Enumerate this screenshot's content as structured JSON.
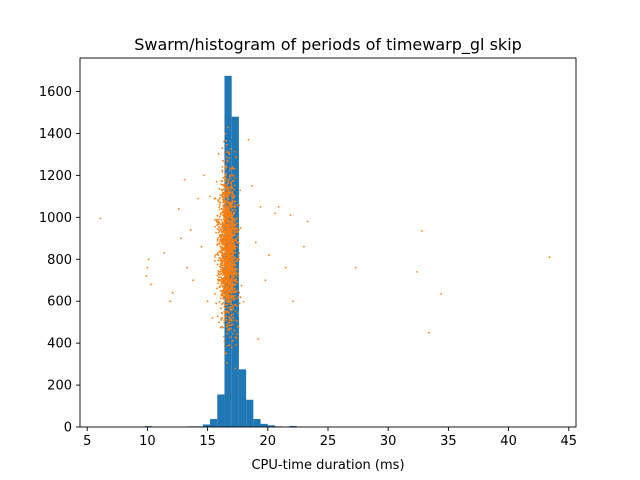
{
  "chart_data": {
    "type": "bar",
    "title": "Swarm/histogram of periods of timewarp_gl skip",
    "xlabel": "CPU-time duration (ms)",
    "ylabel": "",
    "xlim": [
      4.4,
      45.6
    ],
    "ylim": [
      0,
      1760
    ],
    "xticks": [
      5,
      10,
      15,
      20,
      25,
      30,
      35,
      40,
      45
    ],
    "yticks": [
      0,
      200,
      400,
      600,
      800,
      1000,
      1200,
      1400,
      1600
    ],
    "grid": false,
    "colors": {
      "histogram": "#1f77b4",
      "swarm": "#ff7f0e"
    },
    "series": [
      {
        "kind": "histogram",
        "bin_width": 0.6,
        "bins": [
          {
            "x0": 9.8,
            "count": 4
          },
          {
            "x0": 13.4,
            "count": 3
          },
          {
            "x0": 14.0,
            "count": 3
          },
          {
            "x0": 14.6,
            "count": 12
          },
          {
            "x0": 15.2,
            "count": 38
          },
          {
            "x0": 15.8,
            "count": 155
          },
          {
            "x0": 16.4,
            "count": 1675
          },
          {
            "x0": 17.0,
            "count": 1480
          },
          {
            "x0": 17.6,
            "count": 275
          },
          {
            "x0": 18.2,
            "count": 130
          },
          {
            "x0": 18.8,
            "count": 38
          },
          {
            "x0": 19.4,
            "count": 15
          },
          {
            "x0": 20.0,
            "count": 8
          },
          {
            "x0": 20.6,
            "count": 3
          },
          {
            "x0": 21.8,
            "count": 5
          }
        ]
      },
      {
        "kind": "scatter",
        "outliers": [
          [
            6.1,
            995
          ],
          [
            9.9,
            720
          ],
          [
            10.0,
            760
          ],
          [
            10.1,
            800
          ],
          [
            10.3,
            680
          ],
          [
            11.4,
            830
          ],
          [
            11.9,
            600
          ],
          [
            12.1,
            640
          ],
          [
            12.6,
            1040
          ],
          [
            12.8,
            900
          ],
          [
            13.1,
            1180
          ],
          [
            13.3,
            760
          ],
          [
            13.6,
            940
          ],
          [
            13.8,
            700
          ],
          [
            14.2,
            1090
          ],
          [
            14.5,
            860
          ],
          [
            14.7,
            1200
          ],
          [
            15.0,
            600
          ],
          [
            15.2,
            1100
          ],
          [
            15.4,
            520
          ],
          [
            18.4,
            1370
          ],
          [
            18.7,
            1150
          ],
          [
            19.0,
            880
          ],
          [
            19.2,
            420
          ],
          [
            19.4,
            1050
          ],
          [
            19.8,
            700
          ],
          [
            20.1,
            820
          ],
          [
            20.6,
            1020
          ],
          [
            20.9,
            1050
          ],
          [
            21.5,
            760
          ],
          [
            21.9,
            1010
          ],
          [
            22.1,
            600
          ],
          [
            23.0,
            860
          ],
          [
            23.3,
            980
          ],
          [
            27.3,
            760
          ],
          [
            32.4,
            740
          ],
          [
            32.8,
            935
          ],
          [
            33.4,
            450
          ],
          [
            34.4,
            635
          ],
          [
            43.4,
            810
          ]
        ],
        "core": {
          "x_center": 16.7,
          "x_spread": 0.9,
          "y_center": 850,
          "y_spread": 180,
          "y_min": 260,
          "y_max": 1470,
          "count": 1500
        }
      }
    ]
  }
}
